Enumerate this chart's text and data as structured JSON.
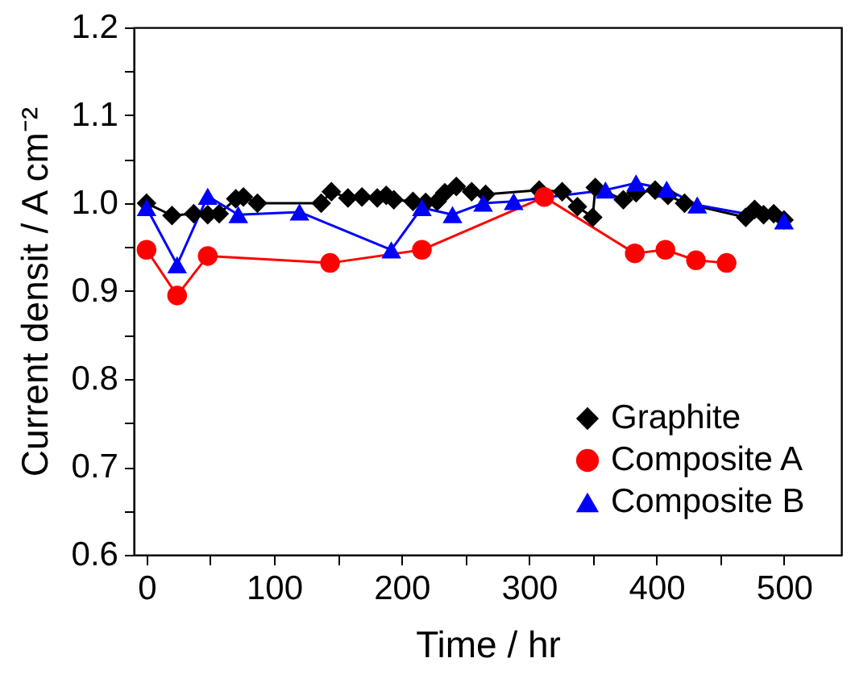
{
  "chart_data": {
    "type": "line",
    "xlabel": "Time / hr",
    "ylabel": "Current densit / A cm⁻²",
    "xlim": [
      -10,
      545
    ],
    "ylim": [
      0.6,
      1.2
    ],
    "xticks": [
      0,
      {
        "value": 50,
        "label": null
      },
      100,
      {
        "value": 150,
        "label": null
      },
      200,
      {
        "value": 250,
        "label": null
      },
      300,
      {
        "value": 350,
        "label": null
      },
      400,
      {
        "value": 450,
        "label": null
      },
      500
    ],
    "yticks": [
      0.6,
      {
        "value": 0.65,
        "label": null
      },
      0.7,
      {
        "value": 0.75,
        "label": null
      },
      0.8,
      {
        "value": 0.85,
        "label": null
      },
      0.9,
      {
        "value": 0.95,
        "label": null
      },
      {
        "value": 1,
        "label": "1.0"
      },
      {
        "value": 1.05,
        "label": null
      },
      1.1,
      {
        "value": 1.15,
        "label": null
      },
      1.2
    ],
    "legend": "bottom right",
    "grid": false,
    "series": [
      {
        "name": "Graphite",
        "color": "#000000",
        "marker": "diamond",
        "x": [
          0,
          20,
          37,
          48,
          57,
          70,
          76,
          87,
          137,
          145,
          158,
          169,
          181,
          188,
          194,
          209,
          219,
          228,
          234,
          243,
          255,
          266,
          308,
          326,
          338,
          350,
          352,
          374,
          384,
          399,
          409,
          422,
          470,
          477,
          484,
          492,
          500
        ],
        "values": [
          1.0,
          0.986,
          0.988,
          0.987,
          0.988,
          1.005,
          1.007,
          1.0,
          1.0,
          1.013,
          1.006,
          1.007,
          1.006,
          1.009,
          1.004,
          1.002,
          1.001,
          1.002,
          1.012,
          1.019,
          1.013,
          1.01,
          1.015,
          1.013,
          0.996,
          0.984,
          1.018,
          1.004,
          1.012,
          1.015,
          1.009,
          1.0,
          0.984,
          0.993,
          0.987,
          0.988,
          0.981
        ]
      },
      {
        "name": "Composite A",
        "color": "#ff0000",
        "marker": "circle",
        "x": [
          0,
          24,
          48,
          144,
          216,
          312,
          383,
          407,
          431,
          455
        ],
        "values": [
          0.947,
          0.895,
          0.94,
          0.932,
          0.947,
          1.007,
          0.943,
          0.947,
          0.935,
          0.932
        ]
      },
      {
        "name": "Composite B",
        "color": "#0000ff",
        "marker": "triangle",
        "x": [
          0,
          24,
          48,
          72,
          120,
          192,
          216,
          240,
          264,
          288,
          360,
          384,
          408,
          432,
          500
        ],
        "values": [
          0.995,
          0.93,
          1.008,
          0.987,
          0.99,
          0.947,
          0.995,
          0.987,
          1.0,
          1.002,
          1.015,
          1.023,
          1.016,
          0.998,
          0.98
        ]
      }
    ]
  }
}
